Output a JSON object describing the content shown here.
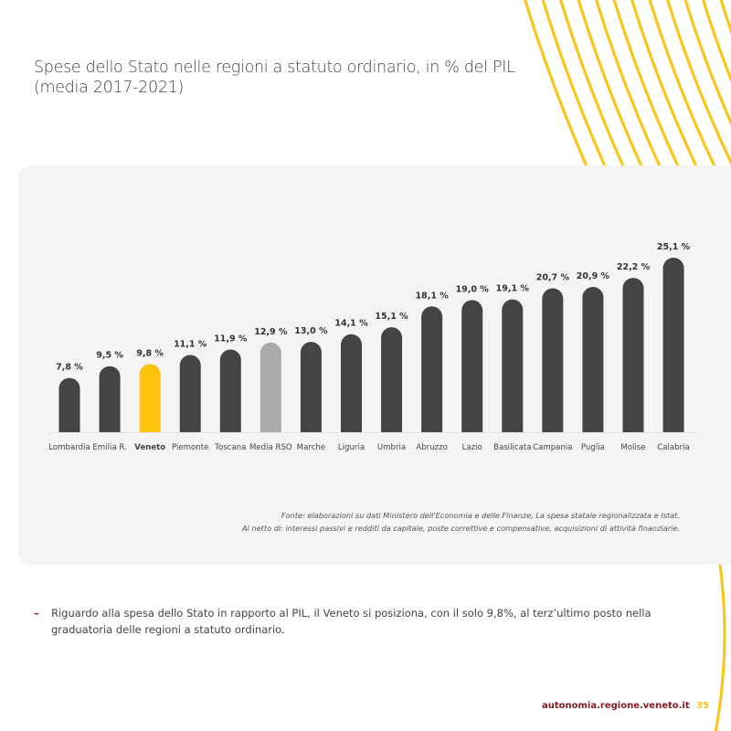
{
  "header": {
    "title_line1": "Spese dello Stato nelle regioni a statuto ordinario, in % del PIL",
    "title_line2": "(media 2017-2021)"
  },
  "chart_data": {
    "type": "bar",
    "categories": [
      "Lombardia",
      "Emilia R.",
      "Veneto",
      "Piemonte",
      "Toscana",
      "Media RSO",
      "Marche",
      "Liguria",
      "Umbria",
      "Abruzzo",
      "Lazio",
      "Basilicata",
      "Campania",
      "Puglia",
      "Molise",
      "Calabria"
    ],
    "values": [
      7.8,
      9.5,
      9.8,
      11.1,
      11.9,
      12.9,
      13.0,
      14.1,
      15.1,
      18.1,
      19.0,
      19.1,
      20.7,
      20.9,
      22.2,
      25.1
    ],
    "data_labels": [
      "7,8 %",
      "9,5 %",
      "9,8 %",
      "11,1 %",
      "11,9 %",
      "12,9 %",
      "13,0 %",
      "14,1 %",
      "15,1 %",
      "18,1 %",
      "19,0 %",
      "19,1 %",
      "20,7 %",
      "20,9 %",
      "22,2 %",
      "25,1 %"
    ],
    "highlight": {
      "Veneto": "#ffc20e",
      "Media RSO": "#aaaaaa"
    },
    "bar_color": "#444444",
    "ylim": [
      0,
      26
    ],
    "grid": false,
    "title": "",
    "xlabel": "",
    "ylabel": ""
  },
  "source": {
    "line1": "Fonte: elaborazioni su dati Ministero dell'Economia e delle Finanze, La spesa statale regionalizzata e Istat.",
    "line2": "Al netto di: interessi passivi e redditi da capitale, poste correttive e compensative, acquisizioni di attività finanziarie."
  },
  "body": {
    "dash": "–",
    "text": "Riguardo alla spesa dello Stato in rapporto al PIL, il Veneto si posiziona, con il solo 9,8%, al terz’ultimo posto nella graduatoria delle regioni a statuto ordinario."
  },
  "footer": {
    "site": "autonomia.regione.veneto.it",
    "page": "35"
  },
  "colors": {
    "accent": "#ffc20e",
    "footer_red": "#8a1c22",
    "card_bg": "#f4f4f4"
  }
}
